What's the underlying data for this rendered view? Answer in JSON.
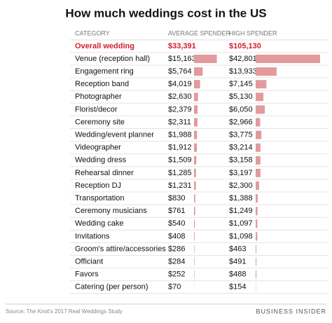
{
  "chart_data": {
    "type": "bar",
    "title": "How much weddings cost in the US",
    "headers": [
      "CATEGORY",
      "AVERAGE SPENDER",
      "HIGH SPENDER"
    ],
    "overall": {
      "category": "Overall wedding",
      "average": "$33,391",
      "high": "$105,130",
      "color": "#d0202f"
    },
    "categories": [
      "Venue (reception hall)",
      "Engagement ring",
      "Reception band",
      "Photographer",
      "Florist/decor",
      "Ceremony site",
      "Wedding/event planner",
      "Videographer",
      "Wedding dress",
      "Rehearsal dinner",
      "Reception DJ",
      "Transportation",
      "Ceremony musicians",
      "Wedding cake",
      "Invitations",
      "Groom's attire/accessories",
      "Officiant",
      "Favors",
      "Catering (per person)"
    ],
    "series": [
      {
        "name": "AVERAGE SPENDER",
        "color": "#e39a9c",
        "values": [
          15163,
          5764,
          4019,
          2630,
          2379,
          2311,
          1988,
          1912,
          1509,
          1285,
          1231,
          830,
          761,
          540,
          408,
          286,
          284,
          252,
          70
        ],
        "value_labels": [
          "$15,163",
          "$5,764",
          "$4,019",
          "$2,630",
          "$2,379",
          "$2,311",
          "$1,988",
          "$1,912",
          "$1,509",
          "$1,285",
          "$1,231",
          "$830",
          "$761",
          "$540",
          "$408",
          "$286",
          "$284",
          "$252",
          "$70"
        ]
      },
      {
        "name": "HIGH SPENDER",
        "color": "#e39a9c",
        "values": [
          42801,
          13933,
          7145,
          5130,
          6050,
          2966,
          3775,
          3214,
          3158,
          3197,
          2300,
          1388,
          1249,
          1097,
          1098,
          463,
          491,
          488,
          154
        ],
        "value_labels": [
          "$42,801",
          "$13,933",
          "$7,145",
          "$5,130",
          "$6,050",
          "$2,966",
          "$3,775",
          "$3,214",
          "$3,158",
          "$3,197",
          "$2,300",
          "$1,388",
          "$1,249",
          "$1,097",
          "$1,098",
          "$463",
          "$491",
          "$488",
          "$154"
        ]
      }
    ],
    "source": "Source: The Knot's 2017 Real Weddings Study",
    "brand": "BUSINESS INSIDER"
  }
}
